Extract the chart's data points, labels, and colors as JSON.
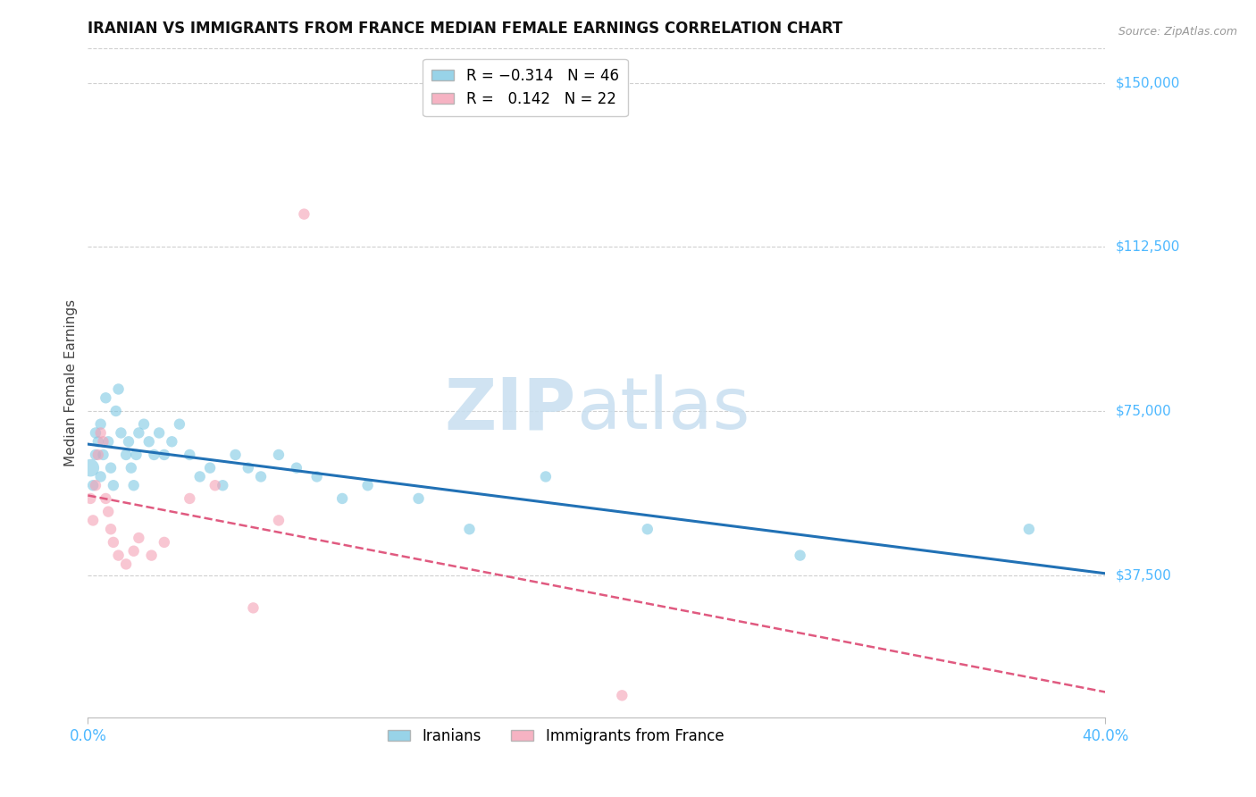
{
  "title": "IRANIAN VS IMMIGRANTS FROM FRANCE MEDIAN FEMALE EARNINGS CORRELATION CHART",
  "source": "Source: ZipAtlas.com",
  "ylabel": "Median Female Earnings",
  "ytick_labels": [
    "$37,500",
    "$75,000",
    "$112,500",
    "$150,000"
  ],
  "ytick_values": [
    37500,
    75000,
    112500,
    150000
  ],
  "ymin": 5000,
  "ymax": 158000,
  "xmin": 0.0,
  "xmax": 0.4,
  "blue_color": "#7ec8e3",
  "pink_color": "#f4a0b5",
  "trend_blue": "#2171b5",
  "trend_pink": "#e05a80",
  "axis_label_color": "#4db8ff",
  "iranians_x": [
    0.001,
    0.002,
    0.003,
    0.003,
    0.004,
    0.005,
    0.005,
    0.006,
    0.007,
    0.008,
    0.009,
    0.01,
    0.011,
    0.012,
    0.013,
    0.015,
    0.016,
    0.017,
    0.018,
    0.019,
    0.02,
    0.022,
    0.024,
    0.026,
    0.028,
    0.03,
    0.033,
    0.036,
    0.04,
    0.044,
    0.048,
    0.053,
    0.058,
    0.063,
    0.068,
    0.075,
    0.082,
    0.09,
    0.1,
    0.11,
    0.13,
    0.15,
    0.18,
    0.22,
    0.28,
    0.37
  ],
  "iranians_y": [
    62000,
    58000,
    65000,
    70000,
    68000,
    72000,
    60000,
    65000,
    78000,
    68000,
    62000,
    58000,
    75000,
    80000,
    70000,
    65000,
    68000,
    62000,
    58000,
    65000,
    70000,
    72000,
    68000,
    65000,
    70000,
    65000,
    68000,
    72000,
    65000,
    60000,
    62000,
    58000,
    65000,
    62000,
    60000,
    65000,
    62000,
    60000,
    55000,
    58000,
    55000,
    48000,
    60000,
    48000,
    42000,
    48000
  ],
  "iranians_size": [
    200,
    80,
    80,
    80,
    80,
    80,
    80,
    80,
    80,
    80,
    80,
    80,
    80,
    80,
    80,
    80,
    80,
    80,
    80,
    80,
    80,
    80,
    80,
    80,
    80,
    80,
    80,
    80,
    80,
    80,
    80,
    80,
    80,
    80,
    80,
    80,
    80,
    80,
    80,
    80,
    80,
    80,
    80,
    80,
    80,
    80
  ],
  "france_x": [
    0.001,
    0.002,
    0.003,
    0.004,
    0.005,
    0.006,
    0.007,
    0.008,
    0.009,
    0.01,
    0.012,
    0.015,
    0.018,
    0.02,
    0.025,
    0.03,
    0.04,
    0.05,
    0.065,
    0.075,
    0.085,
    0.21
  ],
  "france_y": [
    55000,
    50000,
    58000,
    65000,
    70000,
    68000,
    55000,
    52000,
    48000,
    45000,
    42000,
    40000,
    43000,
    46000,
    42000,
    45000,
    55000,
    58000,
    30000,
    50000,
    120000,
    10000
  ],
  "france_size": [
    80,
    80,
    80,
    80,
    80,
    80,
    80,
    80,
    80,
    80,
    80,
    80,
    80,
    80,
    80,
    80,
    80,
    80,
    80,
    80,
    80,
    80
  ]
}
